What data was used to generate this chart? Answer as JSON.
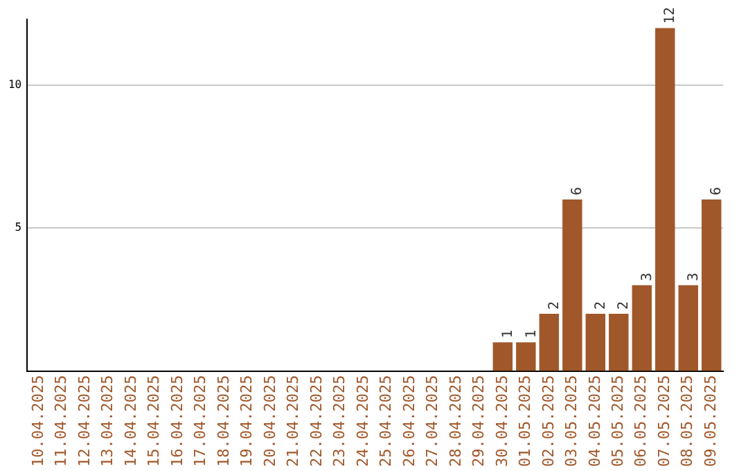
{
  "chart_data": {
    "type": "bar",
    "categories": [
      "10.04.2025",
      "11.04.2025",
      "12.04.2025",
      "13.04.2025",
      "14.04.2025",
      "15.04.2025",
      "16.04.2025",
      "17.04.2025",
      "18.04.2025",
      "19.04.2025",
      "20.04.2025",
      "21.04.2025",
      "22.04.2025",
      "23.04.2025",
      "24.04.2025",
      "25.04.2025",
      "26.04.2025",
      "27.04.2025",
      "28.04.2025",
      "29.04.2025",
      "30.04.2025",
      "01.05.2025",
      "02.05.2025",
      "03.05.2025",
      "04.05.2025",
      "05.05.2025",
      "06.05.2025",
      "07.05.2025",
      "08.05.2025",
      "09.05.2025"
    ],
    "values": [
      0,
      0,
      0,
      0,
      0,
      0,
      0,
      0,
      0,
      0,
      0,
      0,
      0,
      0,
      0,
      0,
      0,
      0,
      0,
      0,
      1,
      1,
      2,
      6,
      2,
      2,
      3,
      12,
      3,
      6
    ],
    "value_labels": [
      null,
      null,
      null,
      null,
      null,
      null,
      null,
      null,
      null,
      null,
      null,
      null,
      null,
      null,
      null,
      null,
      null,
      null,
      null,
      null,
      "1",
      "1",
      "2",
      "6",
      "2",
      "2",
      "3",
      "12",
      "3",
      "6"
    ],
    "color": "#a0582b",
    "ylim": [
      0,
      12.3
    ],
    "yticks": [
      5,
      10
    ],
    "grid": "y",
    "legend": false
  }
}
